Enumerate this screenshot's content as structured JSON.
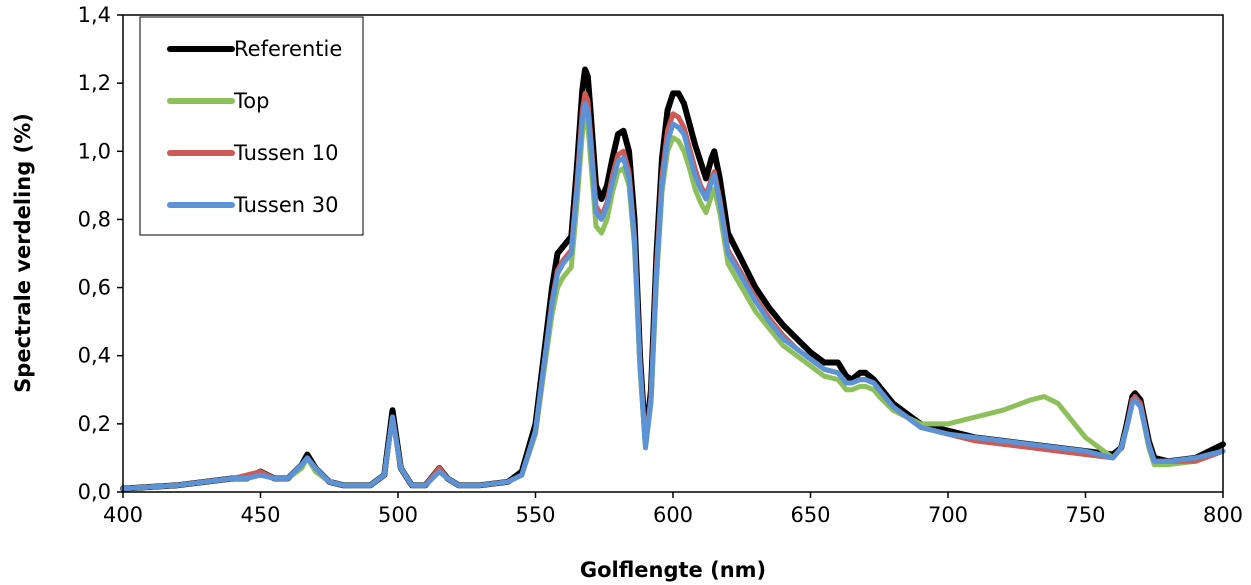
{
  "chart_data": {
    "type": "line",
    "title": "",
    "xlabel": "Golflengte (nm)",
    "ylabel": "Spectrale verdeling (%)",
    "xlim": [
      400,
      800
    ],
    "ylim": [
      0,
      1.4
    ],
    "xticks": [
      400,
      450,
      500,
      550,
      600,
      650,
      700,
      750,
      800
    ],
    "xtick_labels": [
      "400",
      "450",
      "500",
      "550",
      "600",
      "650",
      "700",
      "750",
      "800"
    ],
    "yticks": [
      0,
      0.2,
      0.4,
      0.6,
      0.8,
      1.0,
      1.2,
      1.4
    ],
    "ytick_labels": [
      "0,0",
      "0,2",
      "0,4",
      "0,6",
      "0,8",
      "1,0",
      "1,2",
      "1,4"
    ],
    "grid": false,
    "legend": "top-left",
    "series": [
      {
        "name": "Referentie",
        "color": "#000000",
        "x": [
          400,
          420,
          440,
          445,
          450,
          455,
          460,
          465,
          467,
          470,
          475,
          480,
          490,
          495,
          498,
          501,
          505,
          510,
          515,
          518,
          522,
          530,
          540,
          545,
          550,
          553,
          556,
          558,
          560,
          563,
          565,
          567,
          568,
          569,
          570,
          572,
          574,
          576,
          578,
          580,
          582,
          584,
          586,
          588,
          590,
          592,
          594,
          596,
          598,
          600,
          602,
          604,
          606,
          608,
          610,
          612,
          614,
          615,
          617,
          620,
          625,
          630,
          635,
          640,
          645,
          650,
          655,
          660,
          663,
          665,
          668,
          670,
          673,
          675,
          680,
          690,
          700,
          710,
          720,
          730,
          740,
          750,
          760,
          763,
          765,
          767,
          768,
          770,
          773,
          775,
          780,
          790,
          800
        ],
        "y": [
          0.01,
          0.02,
          0.04,
          0.04,
          0.06,
          0.04,
          0.04,
          0.08,
          0.11,
          0.07,
          0.03,
          0.02,
          0.02,
          0.05,
          0.24,
          0.07,
          0.02,
          0.02,
          0.07,
          0.04,
          0.02,
          0.02,
          0.03,
          0.06,
          0.2,
          0.4,
          0.6,
          0.7,
          0.72,
          0.75,
          0.95,
          1.18,
          1.24,
          1.22,
          1.12,
          0.9,
          0.86,
          0.9,
          0.98,
          1.05,
          1.06,
          1.0,
          0.8,
          0.4,
          0.15,
          0.3,
          0.7,
          0.98,
          1.12,
          1.17,
          1.17,
          1.14,
          1.08,
          1.02,
          0.97,
          0.92,
          0.98,
          1.0,
          0.92,
          0.76,
          0.68,
          0.6,
          0.54,
          0.49,
          0.45,
          0.41,
          0.38,
          0.38,
          0.34,
          0.33,
          0.35,
          0.35,
          0.33,
          0.31,
          0.26,
          0.2,
          0.18,
          0.16,
          0.15,
          0.14,
          0.13,
          0.12,
          0.11,
          0.13,
          0.2,
          0.28,
          0.29,
          0.27,
          0.15,
          0.1,
          0.09,
          0.1,
          0.14
        ]
      },
      {
        "name": "Top",
        "color": "#8dc05a",
        "x": [
          400,
          420,
          440,
          445,
          450,
          455,
          460,
          465,
          467,
          470,
          475,
          480,
          490,
          495,
          498,
          501,
          505,
          510,
          515,
          518,
          522,
          530,
          540,
          545,
          550,
          553,
          556,
          558,
          560,
          563,
          565,
          567,
          568,
          569,
          570,
          572,
          574,
          576,
          578,
          580,
          582,
          584,
          586,
          588,
          590,
          592,
          594,
          596,
          598,
          600,
          602,
          604,
          606,
          608,
          610,
          612,
          614,
          615,
          617,
          620,
          625,
          630,
          635,
          640,
          645,
          650,
          655,
          660,
          663,
          665,
          668,
          670,
          673,
          675,
          680,
          690,
          700,
          710,
          720,
          730,
          735,
          740,
          750,
          760,
          763,
          765,
          767,
          768,
          770,
          773,
          775,
          780,
          790,
          800
        ],
        "y": [
          0.01,
          0.02,
          0.04,
          0.04,
          0.05,
          0.04,
          0.04,
          0.07,
          0.1,
          0.06,
          0.03,
          0.02,
          0.02,
          0.05,
          0.22,
          0.07,
          0.02,
          0.02,
          0.06,
          0.04,
          0.02,
          0.02,
          0.03,
          0.05,
          0.17,
          0.35,
          0.52,
          0.6,
          0.63,
          0.66,
          0.84,
          1.05,
          1.1,
          1.08,
          0.98,
          0.78,
          0.76,
          0.8,
          0.88,
          0.94,
          0.95,
          0.9,
          0.72,
          0.36,
          0.13,
          0.26,
          0.62,
          0.88,
          1.0,
          1.04,
          1.03,
          1.0,
          0.95,
          0.89,
          0.85,
          0.82,
          0.87,
          0.89,
          0.82,
          0.67,
          0.6,
          0.53,
          0.48,
          0.43,
          0.4,
          0.37,
          0.34,
          0.33,
          0.3,
          0.3,
          0.31,
          0.31,
          0.3,
          0.28,
          0.24,
          0.2,
          0.2,
          0.22,
          0.24,
          0.27,
          0.28,
          0.26,
          0.16,
          0.1,
          0.13,
          0.19,
          0.26,
          0.27,
          0.25,
          0.13,
          0.08,
          0.08,
          0.09,
          0.12
        ]
      },
      {
        "name": "Tussen 10",
        "color": "#cd5a56",
        "x": [
          400,
          420,
          440,
          445,
          450,
          455,
          460,
          465,
          467,
          470,
          475,
          480,
          490,
          495,
          498,
          501,
          505,
          510,
          515,
          518,
          522,
          530,
          540,
          545,
          550,
          553,
          556,
          558,
          560,
          563,
          565,
          567,
          568,
          569,
          570,
          572,
          574,
          576,
          578,
          580,
          582,
          584,
          586,
          588,
          590,
          592,
          594,
          596,
          598,
          600,
          602,
          604,
          606,
          608,
          610,
          612,
          614,
          615,
          617,
          620,
          625,
          630,
          635,
          640,
          645,
          650,
          655,
          660,
          663,
          665,
          668,
          670,
          673,
          675,
          680,
          690,
          700,
          710,
          720,
          730,
          740,
          750,
          760,
          763,
          765,
          767,
          768,
          770,
          773,
          775,
          780,
          790,
          800
        ],
        "y": [
          0.01,
          0.02,
          0.04,
          0.05,
          0.06,
          0.04,
          0.04,
          0.08,
          0.1,
          0.07,
          0.03,
          0.02,
          0.02,
          0.05,
          0.22,
          0.07,
          0.02,
          0.02,
          0.07,
          0.04,
          0.02,
          0.02,
          0.03,
          0.05,
          0.18,
          0.37,
          0.56,
          0.65,
          0.68,
          0.71,
          0.9,
          1.12,
          1.17,
          1.15,
          1.05,
          0.84,
          0.81,
          0.85,
          0.93,
          0.99,
          1.0,
          0.94,
          0.75,
          0.38,
          0.14,
          0.28,
          0.66,
          0.93,
          1.06,
          1.11,
          1.1,
          1.07,
          1.01,
          0.95,
          0.9,
          0.87,
          0.92,
          0.94,
          0.86,
          0.71,
          0.64,
          0.57,
          0.51,
          0.46,
          0.42,
          0.39,
          0.36,
          0.35,
          0.32,
          0.32,
          0.33,
          0.33,
          0.32,
          0.3,
          0.25,
          0.19,
          0.17,
          0.15,
          0.14,
          0.13,
          0.12,
          0.11,
          0.1,
          0.13,
          0.19,
          0.27,
          0.28,
          0.26,
          0.14,
          0.09,
          0.09,
          0.09,
          0.12
        ]
      },
      {
        "name": "Tussen 30",
        "color": "#5b93d6",
        "x": [
          400,
          420,
          440,
          445,
          450,
          455,
          460,
          465,
          467,
          470,
          475,
          480,
          490,
          495,
          498,
          501,
          505,
          510,
          515,
          518,
          522,
          530,
          540,
          545,
          550,
          553,
          556,
          558,
          560,
          563,
          565,
          567,
          568,
          569,
          570,
          572,
          574,
          576,
          578,
          580,
          582,
          584,
          586,
          588,
          590,
          592,
          594,
          596,
          598,
          600,
          602,
          604,
          606,
          608,
          610,
          612,
          614,
          615,
          617,
          620,
          625,
          630,
          635,
          640,
          645,
          650,
          655,
          660,
          663,
          665,
          668,
          670,
          673,
          675,
          680,
          690,
          700,
          710,
          720,
          730,
          740,
          750,
          760,
          763,
          765,
          767,
          768,
          770,
          773,
          775,
          780,
          790,
          800
        ],
        "y": [
          0.01,
          0.02,
          0.04,
          0.04,
          0.05,
          0.04,
          0.04,
          0.08,
          0.1,
          0.07,
          0.03,
          0.02,
          0.02,
          0.05,
          0.22,
          0.07,
          0.02,
          0.02,
          0.06,
          0.04,
          0.02,
          0.02,
          0.03,
          0.05,
          0.18,
          0.37,
          0.55,
          0.64,
          0.67,
          0.7,
          0.88,
          1.09,
          1.14,
          1.12,
          1.03,
          0.82,
          0.8,
          0.84,
          0.91,
          0.97,
          0.98,
          0.92,
          0.74,
          0.37,
          0.13,
          0.27,
          0.64,
          0.9,
          1.03,
          1.08,
          1.07,
          1.05,
          0.99,
          0.93,
          0.89,
          0.86,
          0.91,
          0.93,
          0.85,
          0.7,
          0.63,
          0.56,
          0.5,
          0.45,
          0.42,
          0.39,
          0.36,
          0.35,
          0.32,
          0.32,
          0.33,
          0.33,
          0.32,
          0.3,
          0.25,
          0.19,
          0.17,
          0.16,
          0.15,
          0.14,
          0.13,
          0.12,
          0.1,
          0.13,
          0.19,
          0.26,
          0.27,
          0.25,
          0.14,
          0.09,
          0.09,
          0.1,
          0.12
        ]
      }
    ]
  }
}
